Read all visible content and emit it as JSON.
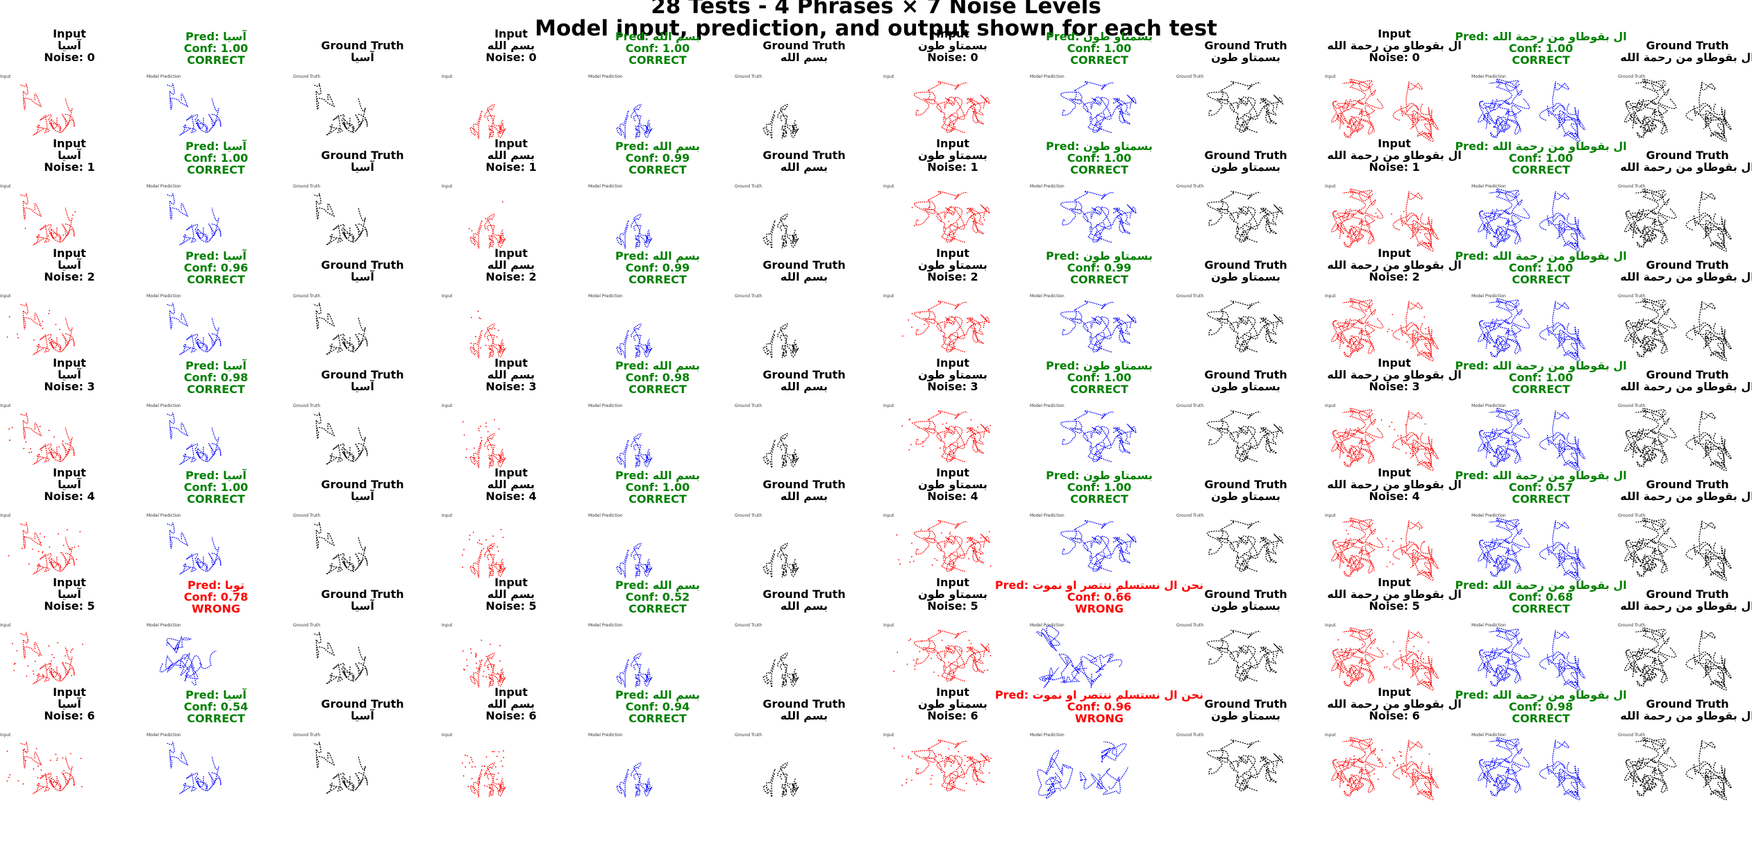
{
  "title": {
    "line1": "28 Tests - 4 Phrases × 7 Noise Levels",
    "line2": "Model input, prediction, and output shown for each test"
  },
  "labels": {
    "input": "Input",
    "ground_truth": "Ground Truth",
    "model_prediction": "Model Prediction",
    "pred_prefix": "Pred: ",
    "conf_prefix": "Conf: ",
    "noise_prefix": "Noise: ",
    "correct": "CORRECT",
    "wrong": "WRONG"
  },
  "colors": {
    "input_stroke": "#ff0000",
    "prediction_stroke": "#0000ff",
    "ground_truth_stroke": "#000000",
    "correct_text": "#008000",
    "wrong_text": "#ff0000"
  },
  "chart_data": {
    "type": "table",
    "phrases": [
      "آسيا",
      "بسم الله",
      "بسمتاو طون",
      "ال بقوطاو من رحمة الله"
    ],
    "noise_levels": [
      0,
      1,
      2,
      3,
      4,
      5,
      6
    ],
    "results": [
      [
        {
          "pred": "آسيا",
          "conf": "1.00",
          "status": "CORRECT"
        },
        {
          "pred": "آسيا",
          "conf": "1.00",
          "status": "CORRECT"
        },
        {
          "pred": "آسيا",
          "conf": "0.96",
          "status": "CORRECT"
        },
        {
          "pred": "آسيا",
          "conf": "0.98",
          "status": "CORRECT"
        },
        {
          "pred": "آسيا",
          "conf": "1.00",
          "status": "CORRECT"
        },
        {
          "pred": "توبا",
          "conf": "0.78",
          "status": "WRONG"
        },
        {
          "pred": "آسيا",
          "conf": "0.54",
          "status": "CORRECT"
        }
      ],
      [
        {
          "pred": "بسم الله",
          "conf": "1.00",
          "status": "CORRECT"
        },
        {
          "pred": "بسم الله",
          "conf": "0.99",
          "status": "CORRECT"
        },
        {
          "pred": "بسم الله",
          "conf": "0.99",
          "status": "CORRECT"
        },
        {
          "pred": "بسم الله",
          "conf": "0.98",
          "status": "CORRECT"
        },
        {
          "pred": "بسم الله",
          "conf": "1.00",
          "status": "CORRECT"
        },
        {
          "pred": "بسم الله",
          "conf": "0.52",
          "status": "CORRECT"
        },
        {
          "pred": "بسم الله",
          "conf": "0.94",
          "status": "CORRECT"
        }
      ],
      [
        {
          "pred": "بسمتاو طون",
          "conf": "1.00",
          "status": "CORRECT"
        },
        {
          "pred": "بسمتاو طون",
          "conf": "1.00",
          "status": "CORRECT"
        },
        {
          "pred": "بسمتاو طون",
          "conf": "0.99",
          "status": "CORRECT"
        },
        {
          "pred": "بسمتاو طون",
          "conf": "1.00",
          "status": "CORRECT"
        },
        {
          "pred": "بسمتاو طون",
          "conf": "1.00",
          "status": "CORRECT"
        },
        {
          "pred": "نحن ال نستسلم ننتصر او نموت",
          "conf": "0.66",
          "status": "WRONG"
        },
        {
          "pred": "نحن ال نستسلم ننتصر او نموت",
          "conf": "0.96",
          "status": "WRONG"
        }
      ],
      [
        {
          "pred": "ال بقوطاو من رحمة الله",
          "conf": "1.00",
          "status": "CORRECT"
        },
        {
          "pred": "ال بقوطاو من رحمة الله",
          "conf": "1.00",
          "status": "CORRECT"
        },
        {
          "pred": "ال بقوطاو من رحمة الله",
          "conf": "1.00",
          "status": "CORRECT"
        },
        {
          "pred": "ال بقوطاو من رحمة الله",
          "conf": "1.00",
          "status": "CORRECT"
        },
        {
          "pred": "ال بقوطاو من رحمة الله",
          "conf": "0.57",
          "status": "CORRECT"
        },
        {
          "pred": "ال بقوطاو من رحمة الله",
          "conf": "0.68",
          "status": "CORRECT"
        },
        {
          "pred": "ال بقوطاو من رحمة الله",
          "conf": "0.98",
          "status": "CORRECT"
        }
      ]
    ]
  }
}
